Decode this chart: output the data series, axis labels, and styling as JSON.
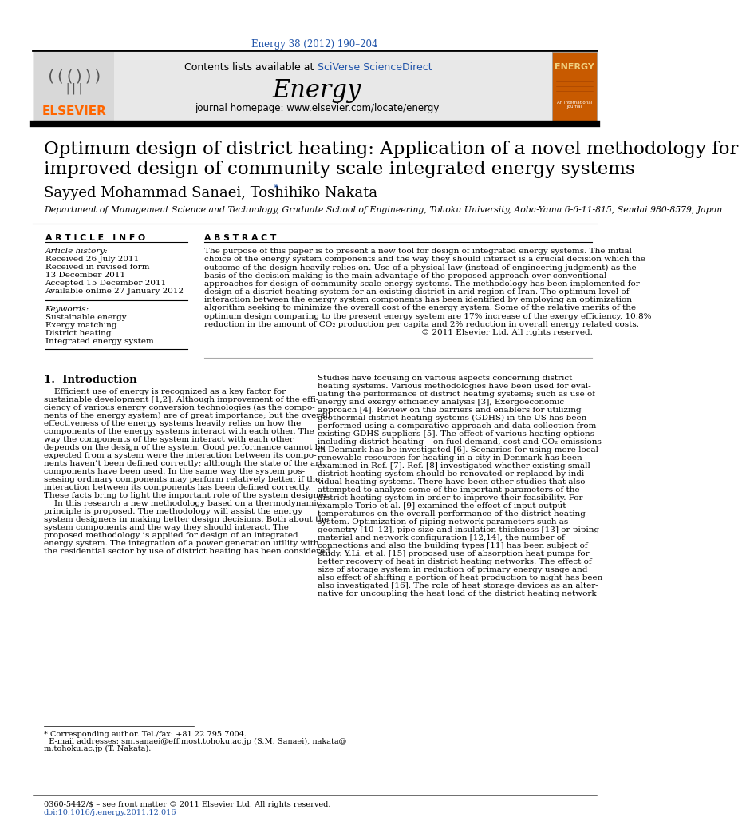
{
  "page_bg": "#ffffff",
  "top_url": "Energy 38 (2012) 190–204",
  "top_url_color": "#2255aa",
  "header_bg": "#e8e8e8",
  "header_text": "Contents lists available at ",
  "header_link": "SciVerse ScienceDirect",
  "header_link_color": "#2255aa",
  "journal_name": "Energy",
  "journal_url": "journal homepage: www.elsevier.com/locate/energy",
  "elsevier_color": "#ff6600",
  "paper_title_line1": "Optimum design of district heating: Application of a novel methodology for",
  "paper_title_line2": "improved design of community scale integrated energy systems",
  "authors": "Sayyed Mohammad Sanaei, Toshihiko Nakata",
  "author_star": "*",
  "affiliation": "Department of Management Science and Technology, Graduate School of Engineering, Tohoku University, Aoba-Yama 6-6-11-815, Sendai 980-8579, Japan",
  "article_info_title": "A R T I C L E   I N F O",
  "article_history_title": "Article history:",
  "received": "Received 26 July 2011",
  "received_revised": "Received in revised form",
  "revised_date": "13 December 2011",
  "accepted": "Accepted 15 December 2011",
  "available": "Available online 27 January 2012",
  "keywords_title": "Keywords:",
  "keywords": [
    "Sustainable energy",
    "Exergy matching",
    "District heating",
    "Integrated energy system"
  ],
  "abstract_title": "A B S T R A C T",
  "abstract_lines": [
    "The purpose of this paper is to present a new tool for design of integrated energy systems. The initial",
    "choice of the energy system components and the way they should interact is a crucial decision which the",
    "outcome of the design heavily relies on. Use of a physical law (instead of engineering judgment) as the",
    "basis of the decision making is the main advantage of the proposed approach over conventional",
    "approaches for design of community scale energy systems. The methodology has been implemented for",
    "design of a district heating system for an existing district in arid region of Iran. The optimum level of",
    "interaction between the energy system components has been identified by employing an optimization",
    "algorithm seeking to minimize the overall cost of the energy system. Some of the relative merits of the",
    "optimum design comparing to the present energy system are 17% increase of the exergy efficiency, 10.8%",
    "reduction in the amount of CO₂ production per capita and 2% reduction in overall energy related costs.",
    "© 2011 Elsevier Ltd. All rights reserved."
  ],
  "section1_title": "1.  Introduction",
  "left_body_lines": [
    "    Efficient use of energy is recognized as a key factor for",
    "sustainable development [1,2]. Although improvement of the effi-",
    "ciency of various energy conversion technologies (as the compo-",
    "nents of the energy system) are of great importance; but the overall",
    "effectiveness of the energy systems heavily relies on how the",
    "components of the energy systems interact with each other. The",
    "way the components of the system interact with each other",
    "depends on the design of the system. Good performance cannot be",
    "expected from a system were the interaction between its compo-",
    "nents haven’t been defined correctly; although the state of the art",
    "components have been used. In the same way the system pos-",
    "sessing ordinary components may perform relatively better, if the",
    "interaction between its components has been defined correctly.",
    "These facts bring to light the important role of the system designer.",
    "    In this research a new methodology based on a thermodynamic",
    "principle is proposed. The methodology will assist the energy",
    "system designers in making better design decisions. Both about the",
    "system components and the way they should interact. The",
    "proposed methodology is applied for design of an integrated",
    "energy system. The integration of a power generation utility with",
    "the residential sector by use of district heating has been considered."
  ],
  "right_body_lines": [
    "Studies have focusing on various aspects concerning district",
    "heating systems. Various methodologies have been used for eval-",
    "uating the performance of district heating systems; such as use of",
    "energy and exergy efficiency analysis [3], Exergoeconomic",
    "approach [4]. Review on the barriers and enablers for utilizing",
    "geothermal district heating systems (GDHS) in the US has been",
    "performed using a comparative approach and data collection from",
    "existing GDHS suppliers [5]. The effect of various heating options –",
    "including district heating – on fuel demand, cost and CO₂ emissions",
    "in Denmark has be investigated [6]. Scenarios for using more local",
    "renewable resources for heating in a city in Denmark has been",
    "examined in Ref. [7]. Ref. [8] investigated whether existing small",
    "district heating system should be renovated or replaced by indi-",
    "vidual heating systems. There have been other studies that also",
    "attempted to analyze some of the important parameters of the",
    "district heating system in order to improve their feasibility. For",
    "example Torio et al. [9] examined the effect of input output",
    "temperatures on the overall performance of the district heating",
    "system. Optimization of piping network parameters such as",
    "geometry [10–12], pipe size and insulation thickness [13] or piping",
    "material and network configuration [12,14], the number of",
    "connections and also the building types [11] has been subject of",
    "study. Y.Li. et al. [15] proposed use of absorption heat pumps for",
    "better recovery of heat in district heating networks. The effect of",
    "size of storage system in reduction of primary energy usage and",
    "also effect of shifting a portion of heat production to night has been",
    "also investigated [16]. The role of heat storage devices as an alter-",
    "native for uncoupling the heat load of the district heating network"
  ],
  "footnote_lines": [
    "* Corresponding author. Tel./fax: +81 22 795 7004.",
    "  E-mail addresses: sm.sanaei@eff.most.tohoku.ac.jp (S.M. Sanaei), nakata@",
    "m.tohoku.ac.jp (T. Nakata)."
  ],
  "footer_left": "0360-5442/$ – see front matter © 2011 Elsevier Ltd. All rights reserved.",
  "footer_doi": "doi:10.1016/j.energy.2011.12.016"
}
